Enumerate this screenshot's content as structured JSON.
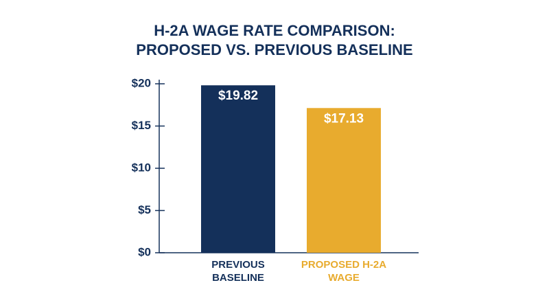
{
  "chart_data": {
    "type": "bar",
    "title": [
      "H-2A WAGE RATE COMPARISON:",
      "PROPOSED VS. PREVIOUS BASELINE"
    ],
    "categories": [
      "PREVIOUS BASELINE",
      "PROPOSED H-2A WAGE"
    ],
    "values": [
      19.82,
      17.13
    ],
    "value_labels": [
      "$19.82",
      "$17.13"
    ],
    "colors": [
      "#14305a",
      "#e8ab2e"
    ],
    "ylim": [
      0,
      20
    ],
    "yticks": [
      {
        "value": 0,
        "label": "$0"
      },
      {
        "value": 5,
        "label": "$5"
      },
      {
        "value": 10,
        "label": "$10"
      },
      {
        "value": 15,
        "label": "$15"
      },
      {
        "value": 20,
        "label": "$20"
      }
    ],
    "grid": false
  }
}
